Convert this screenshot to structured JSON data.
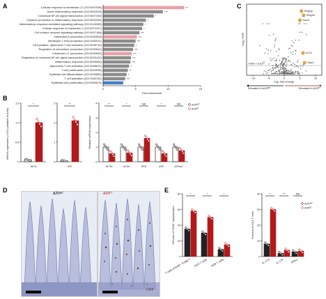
{
  "panels": {
    "a": "A",
    "b": "B",
    "c": "C",
    "d": "D",
    "e": "E"
  },
  "colors": {
    "red": "#b3191b",
    "gray": "#8c8c8c",
    "pink": "#e8a0a6",
    "blue": "#4a7fc4",
    "dark": "#222222",
    "orange": "#e2a24a"
  },
  "panelA": {
    "xlabel": "Fold enrichment",
    "xticks": [
      "0",
      "5",
      "10",
      "15"
    ],
    "rows": [
      {
        "term": "Cellular response to interleukin-17 (GO:0097398)",
        "value": 12.5,
        "color": "pink",
        "sig": "**"
      },
      {
        "term": "Acute inflammatory response (GO:0002526)",
        "value": 9.2,
        "color": "gray",
        "sig": "***"
      },
      {
        "term": "Canonical NF-κB signal transduction (GO:0007249)",
        "value": 7.8,
        "color": "gray",
        "sig": "*"
      },
      {
        "term": "Cytokine production in inflammatory response (GO:0002534)",
        "value": 6.6,
        "color": "gray",
        "sig": "*"
      },
      {
        "term": "Inflammatory response-mediated signaling pathway (GO:0140385)",
        "value": 6.2,
        "color": "gray",
        "sig": "*"
      },
      {
        "term": "Cellular response to interleukin-1 (GO:0071347)",
        "value": 6.0,
        "color": "gray",
        "sig": "*"
      },
      {
        "term": "Cell surface receptor signaling pathway (GO:0007166)",
        "value": 5.6,
        "color": "gray",
        "sig": "***"
      },
      {
        "term": "Interleukin-6 production (GO:0032635)",
        "value": 5.2,
        "color": "pink",
        "sig": "***"
      },
      {
        "term": "Interleukin-1 beta production (GO:0032611)",
        "value": 5.0,
        "color": "gray",
        "sig": "***"
      },
      {
        "term": "CD4-positive, alpha-beta T cell activation (GO:0035710)",
        "value": 4.8,
        "color": "gray",
        "sig": "*"
      },
      {
        "term": "Regulation of chemokine production (GO:0032642)",
        "value": 4.6,
        "color": "gray",
        "sig": "***"
      },
      {
        "term": "Interleukin-17 production (GO:0032620)",
        "value": 4.4,
        "color": "pink",
        "sig": "***"
      },
      {
        "term": "Regulation of canonical NF-κB signal transduction (GO:0043122)",
        "value": 4.3,
        "color": "gray",
        "sig": "***"
      },
      {
        "term": "Inflammatory response (GO:0006954)",
        "value": 4.2,
        "color": "gray",
        "sig": "***"
      },
      {
        "term": "Alpha-beta T cell activation (GO:0046631)",
        "value": 4.0,
        "color": "gray",
        "sig": "*"
      },
      {
        "term": "T cell proliferation (GO:0042098)",
        "value": 3.8,
        "color": "gray",
        "sig": "**"
      },
      {
        "term": "Epithelial cell differentiation (GO:0030855)",
        "value": 3.6,
        "color": "gray",
        "sig": "*"
      },
      {
        "term": "T cell activation (GO:0042110)",
        "value": 3.4,
        "color": "gray",
        "sig": "***"
      },
      {
        "term": "Epithelial cell proliferation (GO:0050673)",
        "value": 3.1,
        "color": "blue",
        "sig": ""
      }
    ]
  },
  "panelC": {
    "ylabel": "−log₁₀ FDR",
    "xlabel": "log₂ fold change",
    "xticks": [
      "−10",
      "−5",
      "0",
      "5",
      "10"
    ],
    "fdr_label": "FDR = 0.01",
    "labels": [
      "Reg3g",
      "Reg3b",
      "Saa3",
      "Il17a",
      "Saa1"
    ],
    "arrow_left": "Elevated in A20ˡᵂᵀ",
    "arrow_right": "Elevated in A20ᴱᵀ"
  },
  "panelB": {
    "ylabel_left": "mRNA expression (×10⁴) (relative to Actb)",
    "ylabel_right": "Relative mRNA expression",
    "left_charts": [
      {
        "gene": "Il17a",
        "ymax": "1.5",
        "yticks": [
          "0",
          "0.5",
          "1.0",
          "1.5"
        ],
        "sig": "*"
      },
      {
        "gene": "Il22",
        "ymax": "3",
        "yticks": [
          "0",
          "1",
          "2",
          "3"
        ],
        "sig": "**"
      }
    ],
    "right_genes": [
      "Il17ra",
      "Il23a",
      "Il23r",
      "Il18",
      "Il22ra2"
    ],
    "right_sig": [
      "**",
      "*",
      "NS",
      "*",
      "NS"
    ],
    "yticks_right": [
      "0",
      "1",
      "2",
      "3",
      "4"
    ],
    "legend": [
      "A20ˡᵂᵀ",
      "A20ᴱᵀ"
    ]
  },
  "panelD": {
    "label_left": "A20ˡᵂᵀ",
    "label_right": "A20ᴱᵀ",
    "stain": "CD4"
  },
  "panelE": {
    "left_ylabel": "Percent of CD45⁺ lymphocytes",
    "left_yticks": [
      "0",
      "20",
      "40",
      "60",
      "80"
    ],
    "left_groups": [
      "T cells (CD90⁺ TCRβ⁺)",
      "CD4 T cells",
      "CD8 T cells"
    ],
    "left_sig": [
      "*",
      "*",
      "*"
    ],
    "right_ylabel": "Percent of CD4 T cells",
    "right_yticks": [
      "0",
      "10",
      "20",
      "30",
      "40"
    ],
    "right_groups": [
      "IL-17A",
      "IL-17F",
      "IFN-γ"
    ],
    "right_sig": [
      "*",
      "**",
      "NS"
    ],
    "legend": [
      "A20ˡᵂᵀ",
      "A20ᴱᵀ"
    ]
  }
}
